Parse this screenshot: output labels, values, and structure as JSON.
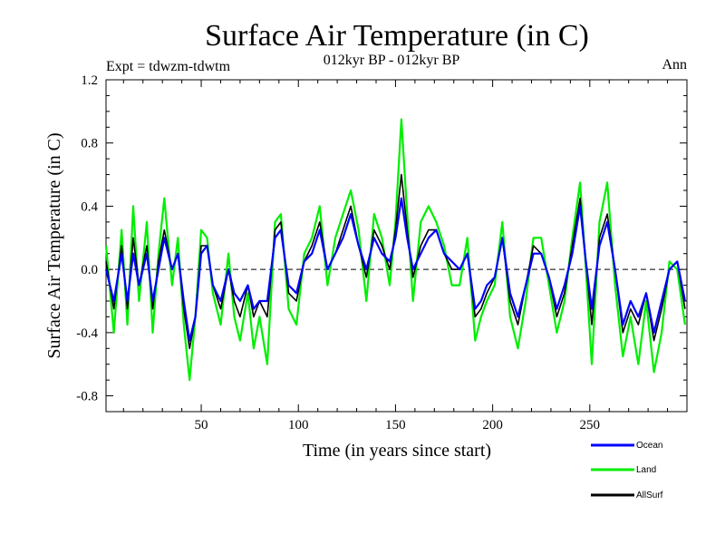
{
  "chart_data": {
    "type": "line",
    "title": "Surface Air Temperature (in C)",
    "subtitle_left": "Expt = tdwzm-tdwtm",
    "subtitle_center": "012kyr BP - 012kyr BP",
    "subtitle_right": "Ann",
    "xlabel": "Time (in years since start)",
    "ylabel": "Surface Air Temperature (in C)",
    "xlim": [
      1,
      300
    ],
    "ylim": [
      -0.9,
      1.2
    ],
    "xticks": [
      50,
      100,
      150,
      200,
      250
    ],
    "yticks": [
      -0.8,
      -0.4,
      0.0,
      0.4,
      0.8,
      1.2
    ],
    "ytick_labels": [
      "-0.8",
      "-0.4",
      "0.0",
      "0.4",
      "0.8",
      "1.2"
    ],
    "zero_line": "dashed",
    "grid": false,
    "legend_position": "bottom-right, outside plot",
    "series": [
      {
        "name": "Ocean",
        "color": "#0000ff",
        "x": [
          1,
          5,
          9,
          12,
          15,
          18,
          22,
          25,
          28,
          31,
          35,
          38,
          41,
          44,
          47,
          50,
          53,
          56,
          60,
          64,
          67,
          70,
          74,
          77,
          80,
          84,
          88,
          91,
          95,
          99,
          103,
          107,
          111,
          115,
          119,
          123,
          127,
          131,
          135,
          139,
          143,
          147,
          150,
          153,
          156,
          159,
          163,
          167,
          171,
          175,
          179,
          183,
          187,
          191,
          194,
          197,
          201,
          205,
          209,
          213,
          217,
          221,
          225,
          229,
          233,
          237,
          241,
          245,
          248,
          251,
          255,
          259,
          263,
          267,
          271,
          275,
          279,
          283,
          287,
          291,
          295,
          299
        ],
        "values": [
          0.0,
          -0.2,
          0.1,
          -0.2,
          0.1,
          -0.1,
          0.1,
          -0.2,
          0.0,
          0.2,
          0.0,
          0.1,
          -0.2,
          -0.45,
          -0.3,
          0.1,
          0.15,
          -0.1,
          -0.2,
          0.0,
          -0.15,
          -0.2,
          -0.1,
          -0.25,
          -0.2,
          -0.2,
          0.2,
          0.25,
          -0.1,
          -0.15,
          0.05,
          0.1,
          0.25,
          0.0,
          0.1,
          0.2,
          0.35,
          0.15,
          0.0,
          0.2,
          0.1,
          0.05,
          0.2,
          0.45,
          0.2,
          0.0,
          0.1,
          0.2,
          0.25,
          0.1,
          0.05,
          0.0,
          0.1,
          -0.25,
          -0.2,
          -0.1,
          -0.05,
          0.2,
          -0.15,
          -0.3,
          -0.1,
          0.1,
          0.1,
          -0.05,
          -0.25,
          -0.1,
          0.1,
          0.4,
          0.05,
          -0.25,
          0.15,
          0.3,
          0.0,
          -0.35,
          -0.2,
          -0.3,
          -0.15,
          -0.4,
          -0.2,
          0.0,
          0.05,
          -0.2
        ]
      },
      {
        "name": "Land",
        "color": "#00ee00",
        "x": [
          1,
          5,
          9,
          12,
          15,
          18,
          22,
          25,
          28,
          31,
          35,
          38,
          41,
          44,
          47,
          50,
          53,
          56,
          60,
          64,
          67,
          70,
          74,
          77,
          80,
          84,
          88,
          91,
          95,
          99,
          103,
          107,
          111,
          115,
          119,
          123,
          127,
          131,
          135,
          139,
          143,
          147,
          150,
          153,
          156,
          159,
          163,
          167,
          171,
          175,
          179,
          183,
          187,
          191,
          194,
          197,
          201,
          205,
          209,
          213,
          217,
          221,
          225,
          229,
          233,
          237,
          241,
          245,
          248,
          251,
          255,
          259,
          263,
          267,
          271,
          275,
          279,
          283,
          287,
          291,
          295,
          299
        ],
        "values": [
          0.15,
          -0.4,
          0.25,
          -0.35,
          0.4,
          -0.2,
          0.3,
          -0.4,
          0.1,
          0.45,
          -0.1,
          0.2,
          -0.35,
          -0.7,
          -0.3,
          0.25,
          0.2,
          -0.15,
          -0.35,
          0.1,
          -0.3,
          -0.45,
          -0.15,
          -0.5,
          -0.3,
          -0.6,
          0.3,
          0.35,
          -0.25,
          -0.35,
          0.1,
          0.2,
          0.4,
          -0.1,
          0.2,
          0.35,
          0.5,
          0.25,
          -0.2,
          0.35,
          0.2,
          -0.1,
          0.3,
          0.95,
          0.35,
          -0.2,
          0.3,
          0.4,
          0.3,
          0.15,
          -0.1,
          -0.1,
          0.2,
          -0.45,
          -0.3,
          -0.2,
          -0.1,
          0.3,
          -0.3,
          -0.5,
          -0.2,
          0.2,
          0.2,
          -0.1,
          -0.4,
          -0.2,
          0.2,
          0.55,
          0.0,
          -0.6,
          0.3,
          0.55,
          -0.1,
          -0.55,
          -0.3,
          -0.6,
          -0.2,
          -0.65,
          -0.4,
          0.05,
          0.0,
          -0.35
        ]
      },
      {
        "name": "AllSurf",
        "color": "#000000",
        "x": [
          1,
          5,
          9,
          12,
          15,
          18,
          22,
          25,
          28,
          31,
          35,
          38,
          41,
          44,
          47,
          50,
          53,
          56,
          60,
          64,
          67,
          70,
          74,
          77,
          80,
          84,
          88,
          91,
          95,
          99,
          103,
          107,
          111,
          115,
          119,
          123,
          127,
          131,
          135,
          139,
          143,
          147,
          150,
          153,
          156,
          159,
          163,
          167,
          171,
          175,
          179,
          183,
          187,
          191,
          194,
          197,
          201,
          205,
          209,
          213,
          217,
          221,
          225,
          229,
          233,
          237,
          241,
          245,
          248,
          251,
          255,
          259,
          263,
          267,
          271,
          275,
          279,
          283,
          287,
          291,
          295,
          299
        ],
        "values": [
          0.05,
          -0.25,
          0.15,
          -0.25,
          0.2,
          -0.1,
          0.15,
          -0.25,
          0.05,
          0.25,
          0.0,
          0.1,
          -0.25,
          -0.5,
          -0.3,
          0.15,
          0.15,
          -0.1,
          -0.25,
          0.0,
          -0.2,
          -0.3,
          -0.1,
          -0.3,
          -0.2,
          -0.3,
          0.25,
          0.3,
          -0.15,
          -0.2,
          0.05,
          0.15,
          0.3,
          0.0,
          0.1,
          0.25,
          0.4,
          0.15,
          -0.05,
          0.25,
          0.15,
          0.0,
          0.25,
          0.6,
          0.25,
          -0.05,
          0.15,
          0.25,
          0.25,
          0.1,
          0.0,
          0.0,
          0.1,
          -0.3,
          -0.25,
          -0.15,
          -0.05,
          0.2,
          -0.2,
          -0.35,
          -0.1,
          0.15,
          0.1,
          -0.05,
          -0.3,
          -0.15,
          0.15,
          0.45,
          0.05,
          -0.35,
          0.2,
          0.35,
          0.0,
          -0.4,
          -0.25,
          -0.35,
          -0.15,
          -0.45,
          -0.25,
          0.0,
          0.05,
          -0.25
        ]
      }
    ]
  }
}
